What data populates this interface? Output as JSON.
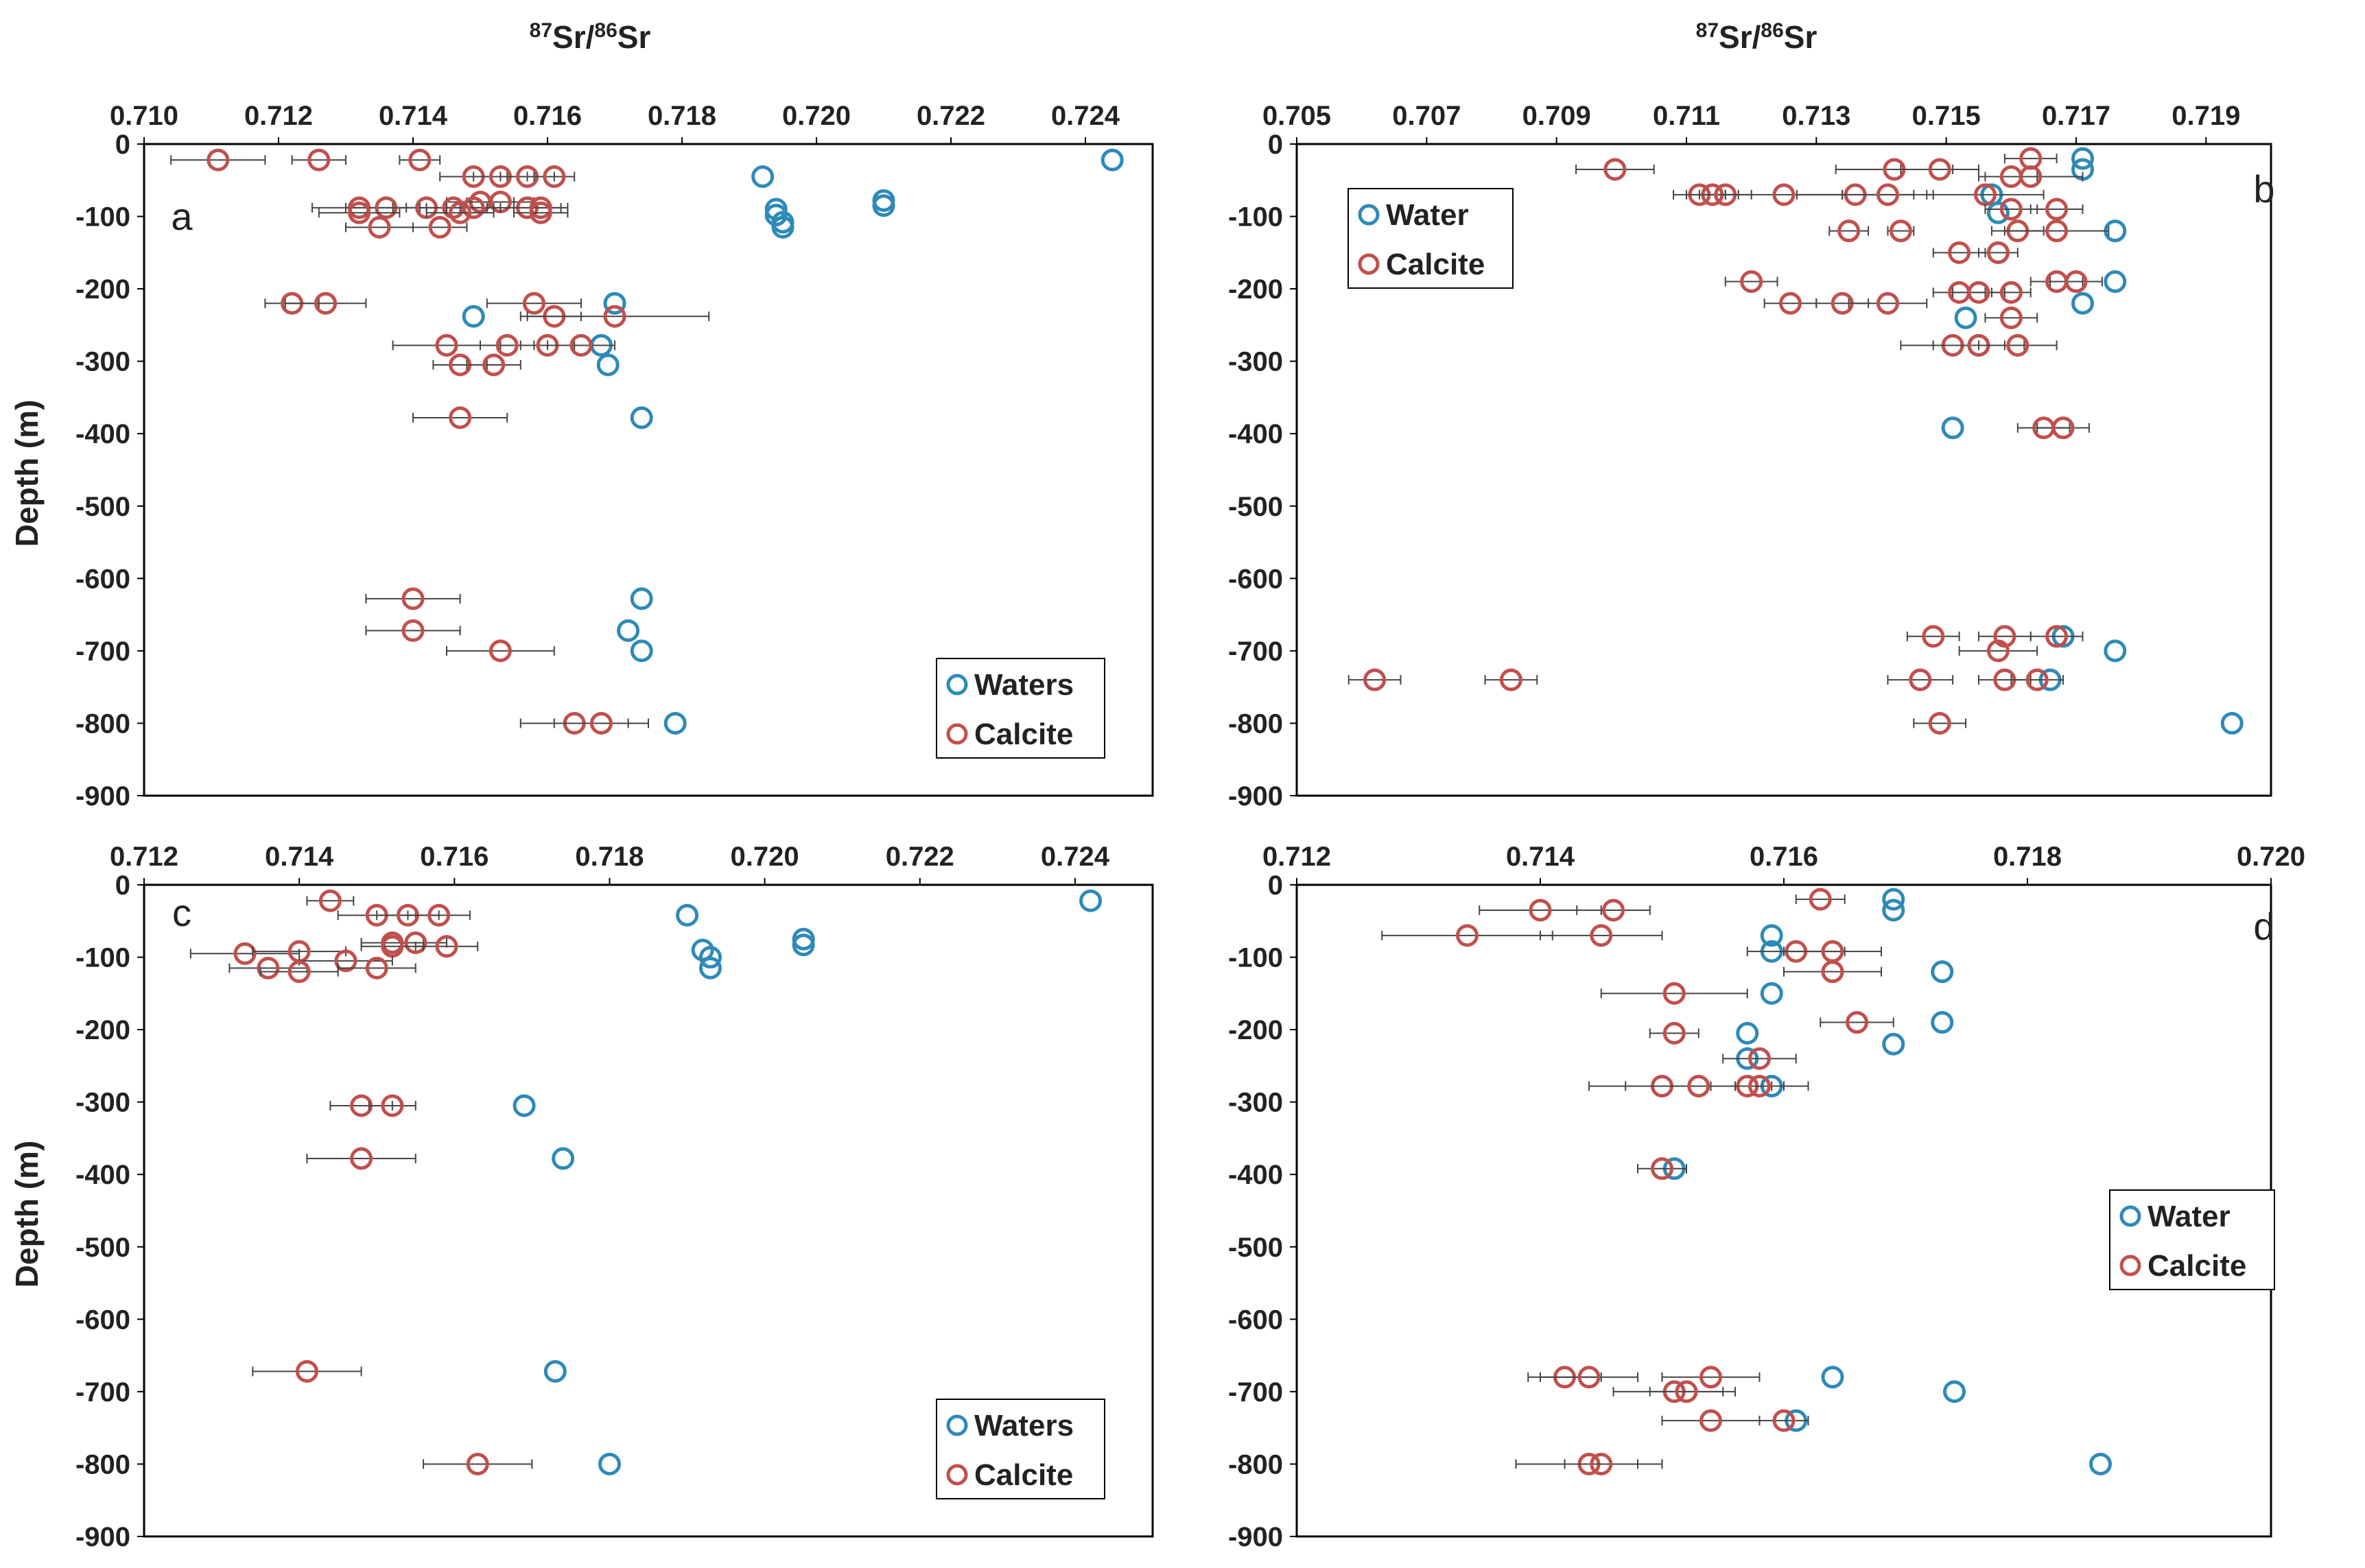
{
  "figure": {
    "top_axis_title": {
      "sup1": "87",
      "main1": "Sr/",
      "sup2": "86",
      "main2": "Sr"
    },
    "ylabel": "Depth (m)"
  },
  "chart_data": [
    {
      "type": "scatter",
      "panel": "a",
      "xlim": [
        0.71,
        0.725
      ],
      "xticks": [
        "0.710",
        "0.712",
        "0.714",
        "0.716",
        "0.718",
        "0.720",
        "0.722",
        "0.724"
      ],
      "ylim": [
        -900,
        0
      ],
      "yticks": [
        "0",
        "-100",
        "-200",
        "-300",
        "-400",
        "-500",
        "-600",
        "-700",
        "-800",
        "-900"
      ],
      "legend": [
        "Waters",
        "Calcite"
      ],
      "series": [
        {
          "name": "Waters",
          "color": "#2e8ab8",
          "points": [
            [
              0.7244,
              -22
            ],
            [
              0.7192,
              -45
            ],
            [
              0.721,
              -78
            ],
            [
              0.721,
              -85
            ],
            [
              0.7194,
              -90
            ],
            [
              0.7194,
              -98
            ],
            [
              0.7195,
              -108
            ],
            [
              0.7195,
              -115
            ],
            [
              0.717,
              -220
            ],
            [
              0.7149,
              -238
            ],
            [
              0.7168,
              -278
            ],
            [
              0.7169,
              -305
            ],
            [
              0.7174,
              -378
            ],
            [
              0.7174,
              -628
            ],
            [
              0.7172,
              -672
            ],
            [
              0.7174,
              -700
            ],
            [
              0.7179,
              -800
            ]
          ]
        },
        {
          "name": "Calcite",
          "color": "#c0504d",
          "points": [
            [
              0.7111,
              -22,
              0.0007
            ],
            [
              0.7126,
              -22,
              0.0004
            ],
            [
              0.7141,
              -22,
              0.0003
            ],
            [
              0.7149,
              -45,
              0.0005
            ],
            [
              0.7153,
              -45,
              0.0004
            ],
            [
              0.7157,
              -45,
              0.0004
            ],
            [
              0.7161,
              -45,
              0.0003
            ],
            [
              0.715,
              -80,
              0.0005
            ],
            [
              0.7153,
              -80,
              0.0005
            ],
            [
              0.7132,
              -88,
              0.0007
            ],
            [
              0.7136,
              -88,
              0.0006
            ],
            [
              0.7142,
              -88,
              0.0005
            ],
            [
              0.7146,
              -88,
              0.0005
            ],
            [
              0.7149,
              -88,
              0.0004
            ],
            [
              0.7157,
              -88,
              0.0005
            ],
            [
              0.7159,
              -88,
              0.0004
            ],
            [
              0.7132,
              -95,
              0.0006
            ],
            [
              0.7147,
              -95,
              0.0005
            ],
            [
              0.7159,
              -95,
              0.0004
            ],
            [
              0.7135,
              -115,
              0.0005
            ],
            [
              0.7144,
              -115,
              0.0004
            ],
            [
              0.7122,
              -220,
              0.0004
            ],
            [
              0.7127,
              -220,
              0.0006
            ],
            [
              0.7158,
              -220,
              0.0007
            ],
            [
              0.7161,
              -238,
              0.0004
            ],
            [
              0.717,
              -238,
              0.0014
            ],
            [
              0.7145,
              -278,
              0.0008
            ],
            [
              0.7154,
              -278,
              0.0004
            ],
            [
              0.716,
              -278,
              0.0004
            ],
            [
              0.7165,
              -278,
              0.0005
            ],
            [
              0.7147,
              -305,
              0.0004
            ],
            [
              0.7152,
              -305,
              0.0004
            ],
            [
              0.7147,
              -378,
              0.0007
            ],
            [
              0.714,
              -628,
              0.0007
            ],
            [
              0.714,
              -672,
              0.0007
            ],
            [
              0.7153,
              -700,
              0.0008
            ],
            [
              0.7164,
              -800,
              0.0008
            ],
            [
              0.7168,
              -800,
              0.0007
            ]
          ]
        }
      ]
    },
    {
      "type": "scatter",
      "panel": "b",
      "xlim": [
        0.705,
        0.72
      ],
      "xticks": [
        "0.705",
        "0.707",
        "0.709",
        "0.711",
        "0.713",
        "0.715",
        "0.717",
        "0.719"
      ],
      "ylim": [
        -900,
        0
      ],
      "yticks": [
        "0",
        "-100",
        "-200",
        "-300",
        "-400",
        "-500",
        "-600",
        "-700",
        "-800",
        "-900"
      ],
      "legend": [
        "Water",
        "Calcite"
      ],
      "series": [
        {
          "name": "Water",
          "color": "#2e8ab8",
          "points": [
            [
              0.7171,
              -20
            ],
            [
              0.7171,
              -35
            ],
            [
              0.7157,
              -70
            ],
            [
              0.7158,
              -95
            ],
            [
              0.7176,
              -120
            ],
            [
              0.7158,
              -150
            ],
            [
              0.7176,
              -190
            ],
            [
              0.7171,
              -220
            ],
            [
              0.7153,
              -240
            ],
            [
              0.7155,
              -278
            ],
            [
              0.7151,
              -392
            ],
            [
              0.7168,
              -680
            ],
            [
              0.7176,
              -700
            ],
            [
              0.7166,
              -740
            ],
            [
              0.7194,
              -800
            ]
          ]
        },
        {
          "name": "Calcite",
          "color": "#c0504d",
          "points": [
            [
              0.7163,
              -20,
              0.0004
            ],
            [
              0.7099,
              -35,
              0.0006
            ],
            [
              0.7142,
              -35,
              0.0009
            ],
            [
              0.7149,
              -35,
              0.0006
            ],
            [
              0.7163,
              -45,
              0.0008
            ],
            [
              0.716,
              -45,
              0.0004
            ],
            [
              0.7112,
              -70,
              0.0004
            ],
            [
              0.7114,
              -70,
              0.0004
            ],
            [
              0.7116,
              -70,
              0.0004
            ],
            [
              0.7125,
              -70,
              0.0009
            ],
            [
              0.7136,
              -70,
              0.0009
            ],
            [
              0.7141,
              -70,
              0.0007
            ],
            [
              0.7156,
              -70,
              0.0009
            ],
            [
              0.716,
              -90,
              0.0004
            ],
            [
              0.7167,
              -90,
              0.0004
            ],
            [
              0.7161,
              -120,
              0.0004
            ],
            [
              0.7167,
              -120,
              0.0008
            ],
            [
              0.7135,
              -120,
              0.0003
            ],
            [
              0.7143,
              -120,
              0.0002
            ],
            [
              0.7158,
              -150,
              0.0003
            ],
            [
              0.7152,
              -150,
              0.0004
            ],
            [
              0.712,
              -190,
              0.0004
            ],
            [
              0.7167,
              -190,
              0.0004
            ],
            [
              0.717,
              -190,
              0.0004
            ],
            [
              0.7152,
              -205,
              0.0004
            ],
            [
              0.7155,
              -205,
              0.0004
            ],
            [
              0.716,
              -205,
              0.0003
            ],
            [
              0.7126,
              -220,
              0.0004
            ],
            [
              0.7134,
              -220,
              0.0004
            ],
            [
              0.7141,
              -220,
              0.0006
            ],
            [
              0.716,
              -240,
              0.0004
            ],
            [
              0.7151,
              -278,
              0.0008
            ],
            [
              0.7155,
              -278,
              0.0007
            ],
            [
              0.7161,
              -278,
              0.0006
            ],
            [
              0.7165,
              -392,
              0.0004
            ],
            [
              0.7168,
              -392,
              0.0004
            ],
            [
              0.7148,
              -680,
              0.0004
            ],
            [
              0.7159,
              -680,
              0.0004
            ],
            [
              0.7167,
              -680,
              0.0004
            ],
            [
              0.7158,
              -700,
              0.0006
            ],
            [
              0.7062,
              -740,
              0.0004
            ],
            [
              0.7083,
              -740,
              0.0004
            ],
            [
              0.7146,
              -740,
              0.0005
            ],
            [
              0.7159,
              -740,
              0.0004
            ],
            [
              0.7164,
              -740,
              0.0004
            ],
            [
              0.7149,
              -800,
              0.0004
            ]
          ]
        }
      ]
    },
    {
      "type": "scatter",
      "panel": "c",
      "xlim": [
        0.712,
        0.725
      ],
      "xticks": [
        "0.712",
        "0.714",
        "0.716",
        "0.718",
        "0.720",
        "0.722",
        "0.724"
      ],
      "ylim": [
        -900,
        0
      ],
      "yticks": [
        "0",
        "-100",
        "-200",
        "-300",
        "-400",
        "-500",
        "-600",
        "-700",
        "-800",
        "-900"
      ],
      "legend": [
        "Waters",
        "Calcite"
      ],
      "series": [
        {
          "name": "Waters",
          "color": "#2e8ab8",
          "points": [
            [
              0.7242,
              -22
            ],
            [
              0.719,
              -42
            ],
            [
              0.7205,
              -75
            ],
            [
              0.7205,
              -83
            ],
            [
              0.7192,
              -90
            ],
            [
              0.7193,
              -100
            ],
            [
              0.7193,
              -115
            ],
            [
              0.7169,
              -305
            ],
            [
              0.7174,
              -378
            ],
            [
              0.7173,
              -672
            ],
            [
              0.718,
              -800
            ]
          ]
        },
        {
          "name": "Calcite",
          "color": "#c0504d",
          "points": [
            [
              0.7144,
              -22,
              0.0003
            ],
            [
              0.715,
              -42,
              0.0005
            ],
            [
              0.7154,
              -42,
              0.0004
            ],
            [
              0.7158,
              -42,
              0.0004
            ],
            [
              0.7152,
              -80,
              0.0004
            ],
            [
              0.7155,
              -80,
              0.0004
            ],
            [
              0.7152,
              -85,
              0.0004
            ],
            [
              0.7159,
              -85,
              0.0004
            ],
            [
              0.7133,
              -95,
              0.0007
            ],
            [
              0.714,
              -92,
              0.0006
            ],
            [
              0.7146,
              -105,
              0.0006
            ],
            [
              0.7136,
              -115,
              0.0005
            ],
            [
              0.715,
              -115,
              0.0005
            ],
            [
              0.714,
              -120,
              0.0005
            ],
            [
              0.7148,
              -305,
              0.0004
            ],
            [
              0.7152,
              -305,
              0.0003
            ],
            [
              0.7148,
              -378,
              0.0007
            ],
            [
              0.7141,
              -672,
              0.0007
            ],
            [
              0.7163,
              -800,
              0.0007
            ]
          ]
        }
      ]
    },
    {
      "type": "scatter",
      "panel": "d",
      "xlim": [
        0.712,
        0.72
      ],
      "xticks": [
        "0.712",
        "0.714",
        "0.716",
        "0.718",
        "0.720"
      ],
      "ylim": [
        -900,
        0
      ],
      "yticks": [
        "0",
        "-100",
        "-200",
        "-300",
        "-400",
        "-500",
        "-600",
        "-700",
        "-800",
        "-900"
      ],
      "legend": [
        "Water",
        "Calcite"
      ],
      "series": [
        {
          "name": "Water",
          "color": "#2e8ab8",
          "points": [
            [
              0.7169,
              -20
            ],
            [
              0.7169,
              -35
            ],
            [
              0.7159,
              -70
            ],
            [
              0.7159,
              -92
            ],
            [
              0.7173,
              -120
            ],
            [
              0.7159,
              -150
            ],
            [
              0.7173,
              -190
            ],
            [
              0.7157,
              -205
            ],
            [
              0.7169,
              -220
            ],
            [
              0.7157,
              -240
            ],
            [
              0.7159,
              -278
            ],
            [
              0.7151,
              -392
            ],
            [
              0.7164,
              -680
            ],
            [
              0.7174,
              -700
            ],
            [
              0.7161,
              -740
            ],
            [
              0.7186,
              -800
            ]
          ]
        },
        {
          "name": "Calcite",
          "color": "#c0504d",
          "points": [
            [
              0.7163,
              -20,
              0.0002
            ],
            [
              0.714,
              -35,
              0.0005
            ],
            [
              0.7146,
              -35,
              0.0003
            ],
            [
              0.7134,
              -70,
              0.0007
            ],
            [
              0.7145,
              -70,
              0.0005
            ],
            [
              0.7161,
              -92,
              0.0004
            ],
            [
              0.7164,
              -92,
              0.0004
            ],
            [
              0.7164,
              -120,
              0.0004
            ],
            [
              0.7151,
              -150,
              0.0006
            ],
            [
              0.7151,
              -205,
              0.0002
            ],
            [
              0.7166,
              -190,
              0.0003
            ],
            [
              0.7158,
              -240,
              0.0003
            ],
            [
              0.715,
              -278,
              0.0006
            ],
            [
              0.7153,
              -278,
              0.0006
            ],
            [
              0.7157,
              -278,
              0.0003
            ],
            [
              0.7158,
              -278,
              0.0004
            ],
            [
              0.715,
              -392,
              0.0002
            ],
            [
              0.7142,
              -680,
              0.0003
            ],
            [
              0.7144,
              -680,
              0.0004
            ],
            [
              0.7154,
              -680,
              0.0004
            ],
            [
              0.7151,
              -700,
              0.0005
            ],
            [
              0.7152,
              -700,
              0.0003
            ],
            [
              0.7154,
              -740,
              0.0004
            ],
            [
              0.716,
              -740,
              0.0002
            ],
            [
              0.7144,
              -800,
              0.0006
            ],
            [
              0.7145,
              -800,
              0.0003
            ]
          ]
        }
      ]
    }
  ]
}
